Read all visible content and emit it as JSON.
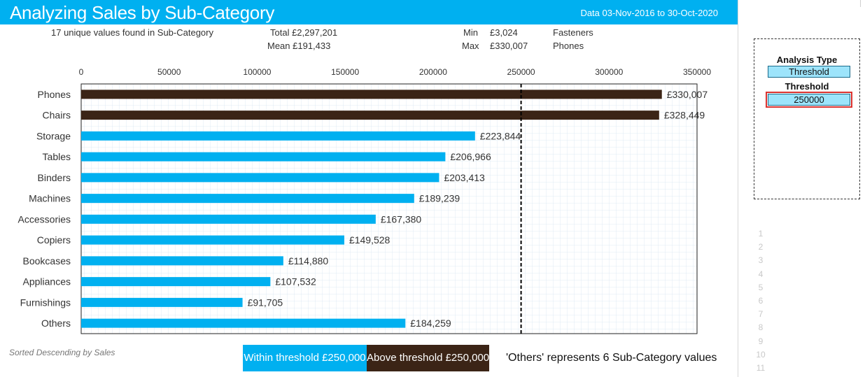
{
  "header": {
    "title": "Analyzing Sales by Sub-Category",
    "date_range": "Data 03-Nov-2016 to 30-Oct-2020"
  },
  "stats": {
    "unique_values": "17 unique values found in Sub-Category",
    "total": "Total £2,297,201",
    "mean": "Mean £191,433",
    "min_label": "Min",
    "min_value": "£3,024",
    "min_name": "Fasteners",
    "max_label": "Max",
    "max_value": "£330,007",
    "max_name": "Phones"
  },
  "colors": {
    "within": "#00b0f0",
    "above": "#3b2416",
    "header": "#00b0f0"
  },
  "chart_data": {
    "type": "bar",
    "orientation": "horizontal",
    "title": "Analyzing Sales by Sub-Category",
    "categories": [
      "Phones",
      "Chairs",
      "Storage",
      "Tables",
      "Binders",
      "Machines",
      "Accessories",
      "Copiers",
      "Bookcases",
      "Appliances",
      "Furnishings",
      "Others"
    ],
    "values": [
      330007,
      328449,
      223844,
      206966,
      203413,
      189239,
      167380,
      149528,
      114880,
      107532,
      91705,
      184259
    ],
    "value_labels": [
      "£330,007",
      "£328,449",
      "£223,844",
      "£206,966",
      "£203,413",
      "£189,239",
      "£167,380",
      "£149,528",
      "£114,880",
      "£107,532",
      "£91,705",
      "£184,259"
    ],
    "xlim": [
      0,
      350000
    ],
    "xticks": [
      0,
      50000,
      100000,
      150000,
      200000,
      250000,
      300000,
      350000
    ],
    "xtick_labels": [
      "0",
      "50000",
      "100000",
      "150000",
      "200000",
      "250000",
      "300000",
      "350000"
    ],
    "threshold": 250000,
    "grid": true,
    "xlabel": "",
    "ylabel": ""
  },
  "legend": {
    "within": "Within threshold £250,000",
    "above": "Above threshold £250,000"
  },
  "notes": {
    "others": "'Others' represents 6 Sub-Category values",
    "sort": "Sorted Descending by Sales"
  },
  "side_panel": {
    "analysis_type_label": "Analysis Type",
    "analysis_type_value": "Threshold",
    "threshold_label": "Threshold",
    "threshold_value": "250000"
  },
  "row_numbers": [
    "1",
    "2",
    "3",
    "4",
    "5",
    "6",
    "7",
    "8",
    "9",
    "10",
    "11"
  ]
}
